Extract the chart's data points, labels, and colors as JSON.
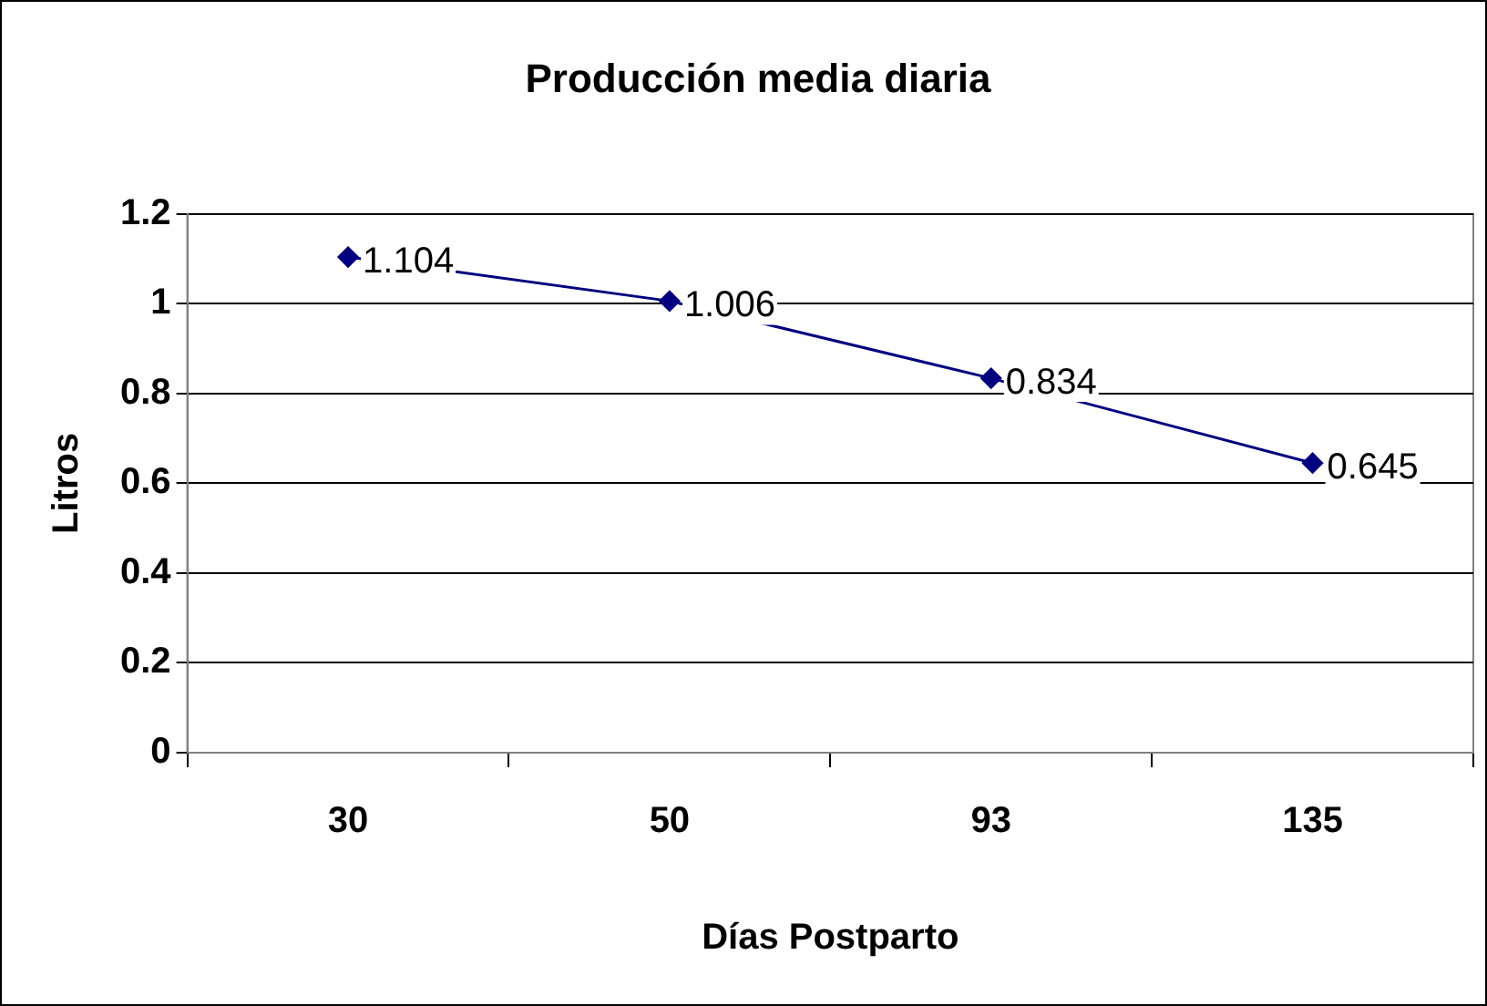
{
  "chart_data": {
    "type": "line",
    "title": "Producción media diaria",
    "xlabel": "Días Postparto",
    "ylabel": "Litros",
    "categories": [
      "30",
      "50",
      "93",
      "135"
    ],
    "series": [
      {
        "color": "#000080",
        "values": [
          1.104,
          1.006,
          0.834,
          0.645
        ]
      }
    ],
    "ylim": [
      0,
      1.2
    ],
    "yticks": [
      0,
      0.2,
      0.4,
      0.6,
      0.8,
      1,
      1.2
    ],
    "grid": "y",
    "legend": false,
    "marker": "diamond",
    "line_style": "solid",
    "data_labels": true
  }
}
